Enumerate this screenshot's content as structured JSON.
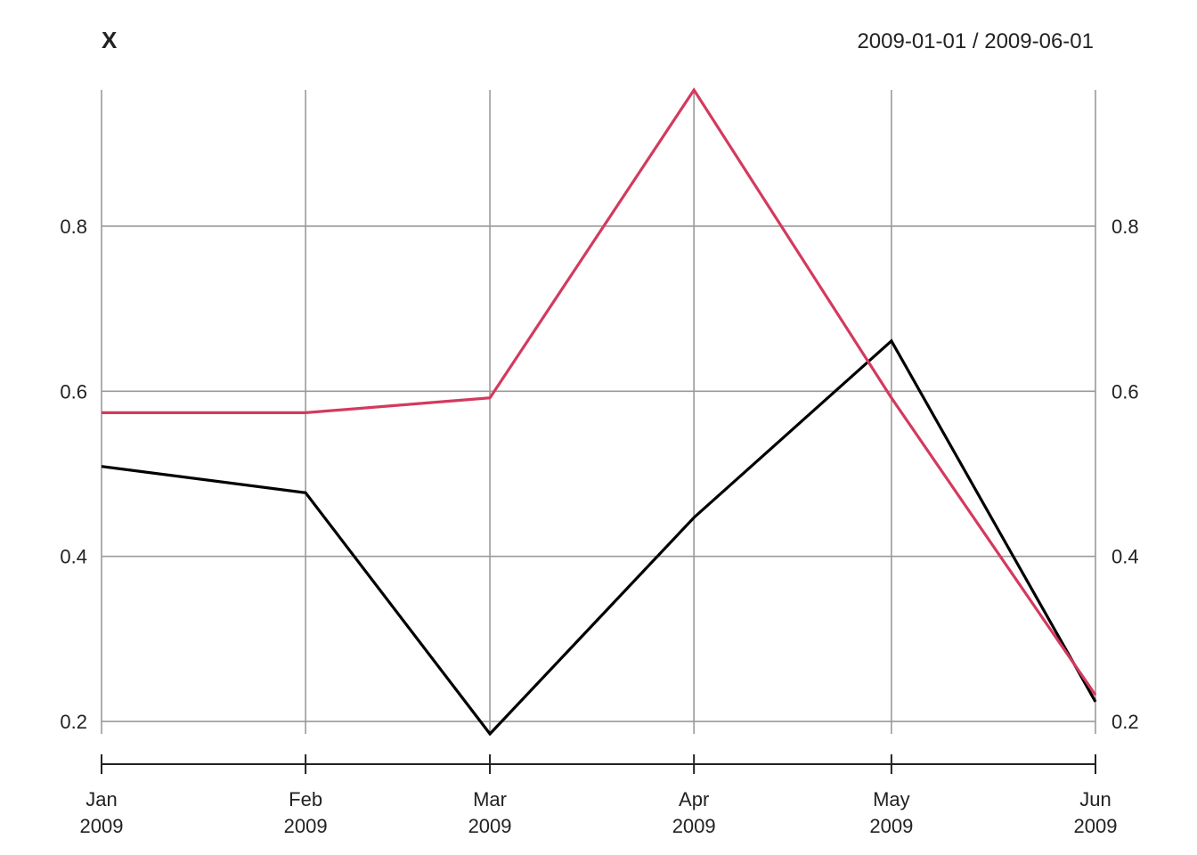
{
  "chart_data": {
    "type": "line",
    "title": "X",
    "date_range_label": "2009-01-01 / 2009-06-01",
    "x": [
      "2009-01-01",
      "2009-02-01",
      "2009-03-01",
      "2009-04-01",
      "2009-05-01",
      "2009-06-01"
    ],
    "x_tick_labels": [
      {
        "month": "Jan",
        "year": "2009"
      },
      {
        "month": "Feb",
        "year": "2009"
      },
      {
        "month": "Mar",
        "year": "2009"
      },
      {
        "month": "Apr",
        "year": "2009"
      },
      {
        "month": "May",
        "year": "2009"
      },
      {
        "month": "Jun",
        "year": "2009"
      }
    ],
    "y_ticks": [
      0.2,
      0.4,
      0.6,
      0.8
    ],
    "y_tick_labels": [
      "0.2",
      "0.4",
      "0.6",
      "0.8"
    ],
    "ylim": [
      0.185,
      0.965
    ],
    "grid": true,
    "series": [
      {
        "color": "#000000",
        "values": [
          0.509,
          0.477,
          0.185,
          0.447,
          0.661,
          0.224
        ]
      },
      {
        "color": "#d33a5e",
        "values": [
          0.574,
          0.574,
          0.592,
          0.965,
          0.592,
          0.232
        ]
      }
    ]
  }
}
